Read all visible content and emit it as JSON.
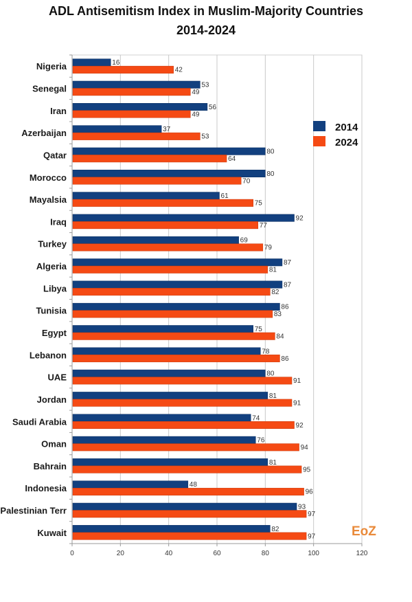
{
  "chart_data": {
    "type": "bar",
    "orientation": "horizontal",
    "title": "ADL Antisemitism Index in Muslim-Majority Countries",
    "subtitle": "2014-2024",
    "xlabel": "",
    "ylabel": "",
    "xlim": [
      0,
      120
    ],
    "xticks": [
      0,
      20,
      40,
      60,
      80,
      100,
      120
    ],
    "grid": true,
    "legend_position": "right",
    "categories": [
      "Nigeria",
      "Senegal",
      "Iran",
      "Azerbaijan",
      "Qatar",
      "Morocco",
      "Mayalsia",
      "Iraq",
      "Turkey",
      "Algeria",
      "Libya",
      "Tunisia",
      "Egypt",
      "Lebanon",
      "UAE",
      "Jordan",
      "Saudi Arabia",
      "Oman",
      "Bahrain",
      "Indonesia",
      "Palestinian Terr",
      "Kuwait"
    ],
    "series": [
      {
        "name": "2014",
        "color": "#12407f",
        "values": [
          16,
          53,
          56,
          37,
          80,
          80,
          61,
          92,
          69,
          87,
          87,
          86,
          75,
          78,
          80,
          81,
          74,
          76,
          81,
          48,
          93,
          82
        ]
      },
      {
        "name": "2024",
        "color": "#f54a14",
        "values": [
          42,
          49,
          49,
          53,
          64,
          70,
          75,
          77,
          79,
          81,
          82,
          83,
          84,
          86,
          91,
          91,
          92,
          94,
          95,
          96,
          97,
          97
        ]
      }
    ],
    "watermark": "EoZ"
  }
}
